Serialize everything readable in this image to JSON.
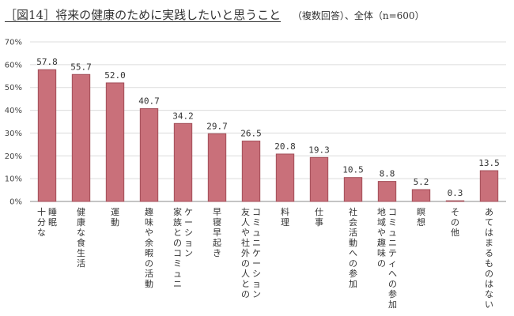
{
  "header": {
    "title": "［図14］将来の健康のために実践したいと思うこと",
    "subtitle": "（複数回答）、全体（n=600）"
  },
  "colors": {
    "bar": "#c9707a",
    "bar_stroke": "#a24e58",
    "grid": "#dcdcdc",
    "axis": "#888888"
  },
  "chart_data": {
    "type": "bar",
    "title": "［図14］将来の健康のために実践したいと思うこと",
    "subtitle": "（複数回答）、全体（n=600）",
    "xlabel": "",
    "ylabel": "",
    "ylim": [
      0,
      70
    ],
    "yticks": [
      0,
      10,
      20,
      30,
      40,
      50,
      60,
      70
    ],
    "ytick_labels": [
      "0%",
      "10%",
      "20%",
      "30%",
      "40%",
      "50%",
      "60%",
      "70%"
    ],
    "grid": true,
    "legend": "none",
    "categories": [
      "十分な睡眠",
      "健康な食生活",
      "運動",
      "趣味や余暇の活動",
      "家族とのコミュニケーション",
      "早寝早起き",
      "友人や社外の人とのコミュニケーション",
      "料理",
      "仕事",
      "社会活動への参加",
      "地域や趣味のコミュニティへの参加",
      "瞑想",
      "その他",
      "あてはまるものはない"
    ],
    "category_lines": [
      [
        "十分な",
        "睡眠"
      ],
      [
        "健康な食生活"
      ],
      [
        "運動"
      ],
      [
        "趣味や余暇の活動"
      ],
      [
        "家族とのコミュニ",
        "ケーション"
      ],
      [
        "早寝早起き"
      ],
      [
        "友人や社外の人との",
        "コミュニケーション"
      ],
      [
        "料理"
      ],
      [
        "仕事"
      ],
      [
        "社会活動への参加"
      ],
      [
        "地域や趣味の",
        "コミュニティへの参加"
      ],
      [
        "瞑想"
      ],
      [
        "その他"
      ],
      [
        "あてはまるものはない"
      ]
    ],
    "values": [
      57.8,
      55.7,
      52.0,
      40.7,
      34.2,
      29.7,
      26.5,
      20.8,
      19.3,
      10.5,
      8.8,
      5.2,
      0.3,
      13.5
    ],
    "value_labels": [
      "57.8",
      "55.7",
      "52.0",
      "40.7",
      "34.2",
      "29.7",
      "26.5",
      "20.8",
      "19.3",
      "10.5",
      "8.8",
      "5.2",
      "0.3",
      "13.5"
    ]
  }
}
